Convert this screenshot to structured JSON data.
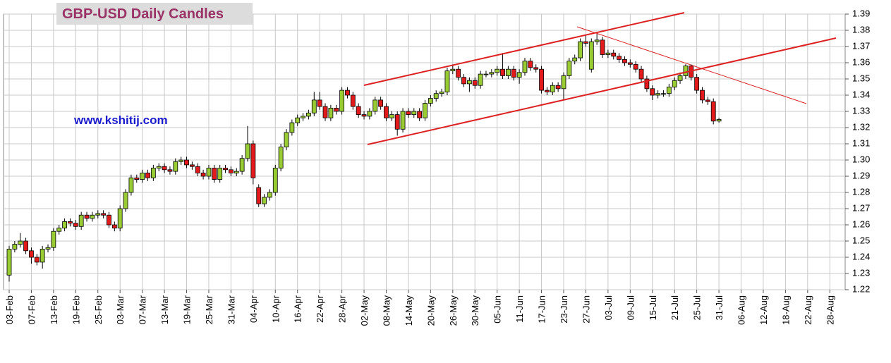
{
  "chart_data": {
    "type": "candlestick",
    "title": "GBP-USD Daily Candles",
    "annotation": "www.kshitij.com",
    "up_color": "#99cc33",
    "down_color": "#e31a1c",
    "grid": true,
    "categories": [
      "03-Feb",
      null,
      null,
      null,
      "07-Feb",
      null,
      null,
      null,
      "13-Feb",
      null,
      null,
      null,
      "19-Feb",
      null,
      null,
      null,
      "25-Feb",
      null,
      null,
      null,
      "03-Mar",
      null,
      null,
      null,
      "07-Mar",
      null,
      null,
      null,
      "13-Mar",
      null,
      null,
      null,
      "19-Mar",
      null,
      null,
      null,
      "25-Mar",
      null,
      null,
      null,
      "31-Mar",
      null,
      null,
      null,
      "04-Apr",
      null,
      null,
      null,
      "10-Apr",
      null,
      null,
      null,
      "16-Apr",
      null,
      null,
      null,
      "22-Apr",
      null,
      null,
      null,
      "28-Apr",
      null,
      null,
      null,
      "02-May",
      null,
      null,
      null,
      "08-May",
      null,
      null,
      null,
      "14-May",
      null,
      null,
      null,
      "20-May",
      null,
      null,
      null,
      "26-May",
      null,
      null,
      null,
      "30-May",
      null,
      null,
      null,
      "05-Jun",
      null,
      null,
      null,
      "11-Jun",
      null,
      null,
      null,
      "17-Jun",
      null,
      null,
      null,
      "23-Jun",
      null,
      null,
      null,
      "27-Jun",
      null,
      null,
      null,
      "03-Jul",
      null,
      null,
      null,
      "09-Jul",
      null,
      null,
      null,
      "15-Jul",
      null,
      null,
      null,
      "21-Jul",
      null,
      null,
      null,
      "25-Jul",
      null,
      null,
      null,
      "31-Jul",
      null,
      null,
      null,
      "06-Aug",
      null,
      null,
      null,
      "12-Aug",
      null,
      null,
      null,
      "18-Aug",
      null,
      null,
      null,
      "22-Aug",
      null,
      null,
      null,
      "28-Aug"
    ],
    "open": [
      1.229,
      1.245,
      1.248,
      1.25,
      1.244,
      1.24,
      1.237,
      1.245,
      1.246,
      1.256,
      1.258,
      1.262,
      1.261,
      1.259,
      1.266,
      1.264,
      1.266,
      1.267,
      1.266,
      1.26,
      1.258,
      1.27,
      1.28,
      1.289,
      1.288,
      1.292,
      1.289,
      1.295,
      1.296,
      1.294,
      1.293,
      1.299,
      1.3,
      1.297,
      1.296,
      1.292,
      1.29,
      1.295,
      1.288,
      1.295,
      1.294,
      1.292,
      1.293,
      1.301,
      1.31,
      1.283,
      1.273,
      1.277,
      1.28,
      1.295,
      1.308,
      1.317,
      1.323,
      1.326,
      1.327,
      1.329,
      1.337,
      1.333,
      1.326,
      1.332,
      1.33,
      1.343,
      1.34,
      1.333,
      1.328,
      1.327,
      1.33,
      1.337,
      1.333,
      1.326,
      1.328,
      1.319,
      1.33,
      1.328,
      1.33,
      1.326,
      1.335,
      1.338,
      1.341,
      1.342,
      1.355,
      1.356,
      1.351,
      1.347,
      1.349,
      1.346,
      1.353,
      1.353,
      1.354,
      1.356,
      1.352,
      1.356,
      1.351,
      1.354,
      1.361,
      1.357,
      1.356,
      1.343,
      1.342,
      1.346,
      1.344,
      1.352,
      1.361,
      1.363,
      1.373,
      1.356,
      1.373,
      1.374,
      1.365,
      1.366,
      1.364,
      1.362,
      1.36,
      1.359,
      1.356,
      1.35,
      1.344,
      1.34,
      1.341,
      1.341,
      1.345,
      1.349,
      1.352,
      1.358,
      1.351,
      1.343,
      1.337,
      1.336,
      1.324,
      null,
      null,
      null,
      null,
      null,
      null,
      null,
      null,
      null,
      null,
      null,
      null,
      null,
      null,
      null,
      null,
      null,
      null,
      null,
      null
    ],
    "high": [
      1.247,
      1.25,
      1.255,
      1.252,
      1.246,
      1.242,
      1.247,
      1.248,
      1.258,
      1.26,
      1.264,
      1.264,
      1.263,
      1.268,
      1.268,
      1.268,
      1.269,
      1.269,
      1.268,
      1.262,
      1.272,
      1.282,
      1.291,
      1.291,
      1.294,
      1.294,
      1.297,
      1.298,
      1.298,
      1.296,
      1.301,
      1.302,
      1.302,
      1.299,
      1.298,
      1.294,
      1.297,
      1.297,
      1.297,
      1.297,
      1.296,
      1.295,
      1.303,
      1.321,
      1.312,
      1.285,
      1.279,
      1.282,
      1.297,
      1.31,
      1.319,
      1.325,
      1.328,
      1.329,
      1.331,
      1.342,
      1.342,
      1.335,
      1.334,
      1.334,
      1.345,
      1.345,
      1.342,
      1.335,
      1.33,
      1.332,
      1.339,
      1.339,
      1.335,
      1.33,
      1.33,
      1.332,
      1.332,
      1.332,
      1.332,
      1.337,
      1.34,
      1.343,
      1.344,
      1.357,
      1.359,
      1.358,
      1.353,
      1.351,
      1.351,
      1.355,
      1.355,
      1.356,
      1.358,
      1.366,
      1.358,
      1.358,
      1.356,
      1.363,
      1.363,
      1.359,
      1.358,
      1.345,
      1.348,
      1.348,
      1.354,
      1.363,
      1.365,
      1.375,
      1.377,
      1.375,
      1.379,
      1.376,
      1.368,
      1.368,
      1.366,
      1.364,
      1.362,
      1.361,
      1.358,
      1.352,
      1.346,
      1.343,
      1.343,
      1.347,
      1.351,
      1.354,
      1.359,
      1.359,
      1.353,
      1.345,
      1.339,
      1.338,
      1.326,
      null,
      null,
      null,
      null,
      null,
      null,
      null,
      null,
      null,
      null,
      null,
      null,
      null,
      null,
      null,
      null,
      null,
      null,
      null,
      null
    ],
    "low": [
      1.225,
      1.243,
      1.246,
      1.242,
      1.236,
      1.235,
      1.233,
      1.243,
      1.244,
      1.254,
      1.256,
      1.259,
      1.257,
      1.257,
      1.262,
      1.262,
      1.264,
      1.264,
      1.258,
      1.256,
      1.256,
      1.268,
      1.278,
      1.286,
      1.286,
      1.287,
      1.287,
      1.293,
      1.292,
      1.291,
      1.291,
      1.297,
      1.295,
      1.294,
      1.29,
      1.288,
      1.288,
      1.286,
      1.286,
      1.292,
      1.29,
      1.29,
      1.291,
      1.299,
      1.285,
      1.271,
      1.271,
      1.275,
      1.278,
      1.293,
      1.306,
      1.315,
      1.321,
      1.324,
      1.325,
      1.327,
      1.331,
      1.324,
      1.324,
      1.328,
      1.328,
      1.338,
      1.331,
      1.326,
      1.325,
      1.325,
      1.328,
      1.331,
      1.324,
      1.324,
      1.315,
      1.317,
      1.326,
      1.326,
      1.324,
      1.324,
      1.333,
      1.336,
      1.339,
      1.34,
      1.353,
      1.349,
      1.345,
      1.342,
      1.344,
      1.344,
      1.351,
      1.351,
      1.352,
      1.35,
      1.35,
      1.349,
      1.347,
      1.352,
      1.355,
      1.354,
      1.341,
      1.34,
      1.34,
      1.342,
      1.337,
      1.35,
      1.359,
      1.361,
      1.37,
      1.354,
      1.371,
      1.363,
      1.363,
      1.362,
      1.36,
      1.358,
      1.357,
      1.354,
      1.348,
      1.342,
      1.337,
      1.338,
      1.339,
      1.339,
      1.343,
      1.347,
      1.35,
      1.349,
      1.341,
      1.335,
      1.334,
      1.322,
      1.323,
      null,
      null,
      null,
      null,
      null,
      null,
      null,
      null,
      null,
      null,
      null,
      null,
      null,
      null,
      null,
      null,
      null,
      null,
      null,
      null
    ],
    "close": [
      1.245,
      1.248,
      1.25,
      1.244,
      1.24,
      1.237,
      1.245,
      1.246,
      1.256,
      1.258,
      1.262,
      1.261,
      1.259,
      1.266,
      1.264,
      1.266,
      1.267,
      1.266,
      1.26,
      1.258,
      1.27,
      1.28,
      1.289,
      1.288,
      1.292,
      1.289,
      1.295,
      1.296,
      1.294,
      1.293,
      1.299,
      1.3,
      1.297,
      1.296,
      1.292,
      1.29,
      1.295,
      1.288,
      1.295,
      1.294,
      1.292,
      1.293,
      1.301,
      1.31,
      1.289,
      1.273,
      1.277,
      1.28,
      1.295,
      1.308,
      1.317,
      1.323,
      1.326,
      1.327,
      1.329,
      1.337,
      1.333,
      1.326,
      1.332,
      1.33,
      1.343,
      1.34,
      1.333,
      1.328,
      1.327,
      1.33,
      1.337,
      1.333,
      1.326,
      1.328,
      1.319,
      1.33,
      1.328,
      1.33,
      1.326,
      1.335,
      1.338,
      1.341,
      1.342,
      1.355,
      1.356,
      1.351,
      1.347,
      1.349,
      1.346,
      1.353,
      1.353,
      1.354,
      1.356,
      1.352,
      1.356,
      1.351,
      1.354,
      1.361,
      1.357,
      1.356,
      1.343,
      1.342,
      1.346,
      1.344,
      1.352,
      1.361,
      1.363,
      1.373,
      1.372,
      1.373,
      1.374,
      1.365,
      1.366,
      1.364,
      1.362,
      1.36,
      1.359,
      1.356,
      1.35,
      1.344,
      1.34,
      1.341,
      1.341,
      1.345,
      1.349,
      1.352,
      1.358,
      1.351,
      1.343,
      1.337,
      1.336,
      1.324,
      1.325,
      null,
      null,
      null,
      null,
      null,
      null,
      null,
      null,
      null,
      null,
      null,
      null,
      null,
      null,
      null,
      null,
      null,
      null,
      null,
      null
    ],
    "ylim": [
      1.22,
      1.39
    ],
    "yticks": [
      1.22,
      1.23,
      1.24,
      1.25,
      1.26,
      1.27,
      1.28,
      1.29,
      {
        "value": 1.3,
        "label": "1.30"
      },
      1.31,
      1.32,
      1.33,
      1.34,
      1.35,
      1.36,
      1.37,
      1.38,
      1.39
    ]
  }
}
